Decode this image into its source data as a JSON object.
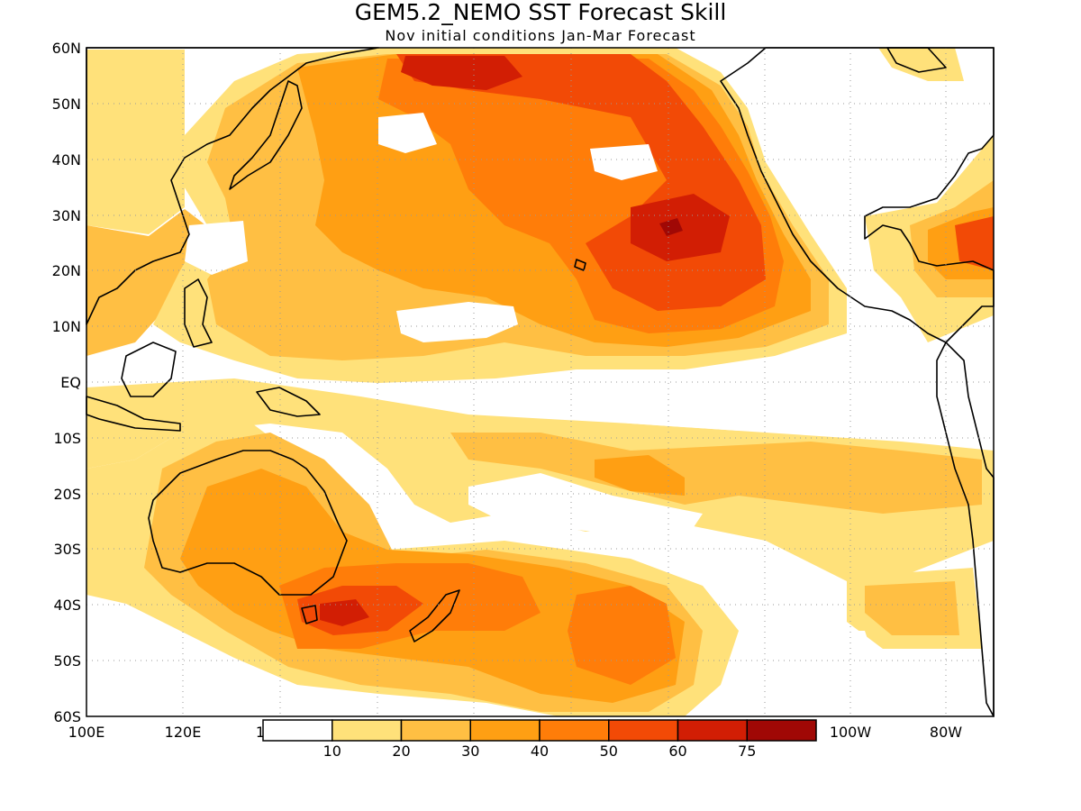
{
  "map": {
    "title": "GEM5.2_NEMO SST Forecast Skill",
    "subtitle": "Nov initial conditions  Jan-Mar Forecast",
    "lat_labels": [
      "60N",
      "50N",
      "40N",
      "30N",
      "20N",
      "10N",
      "EQ",
      "10S",
      "20S",
      "30S",
      "40S",
      "50S",
      "60S"
    ],
    "lon_labels_left": [
      "100E",
      "120E"
    ],
    "lon_labels_right": [
      "100W",
      "80W"
    ],
    "lon_label_partial": "1",
    "extent": {
      "lon_min_east": 100,
      "lon_max_east": 287,
      "lat_min": -60,
      "lat_max": 60
    }
  },
  "colorbar": {
    "levels": [
      "10",
      "20",
      "30",
      "40",
      "50",
      "60",
      "75"
    ],
    "colors": [
      "#ffffff",
      "#ffe17a",
      "#ffbf43",
      "#ff9f13",
      "#ff7d09",
      "#f24a06",
      "#d21e04",
      "#a00805"
    ]
  }
}
